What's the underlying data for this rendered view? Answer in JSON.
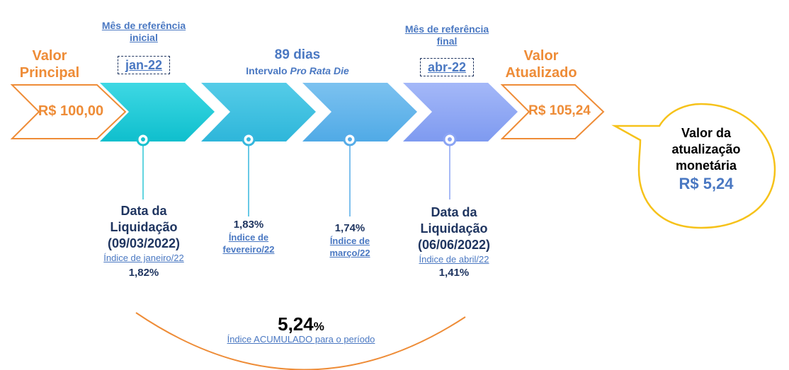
{
  "start": {
    "label_line1": "Valor",
    "label_line2": "Principal",
    "amount": "R$ 100,00"
  },
  "end": {
    "label_line1": "Valor",
    "label_line2": "Atualizado",
    "amount": "R$ 105,24"
  },
  "ref_initial": {
    "label_line1": "Mês de referência",
    "label_line2": "inicial",
    "month": "jan-22"
  },
  "ref_final": {
    "label_line1": "Mês de referência",
    "label_line2": "final",
    "month": "abr-22"
  },
  "interval": {
    "days": "89 dias",
    "label_prefix": "Intervalo ",
    "label_italic": "Pro Rata Die"
  },
  "points": [
    {
      "line1": "Data da",
      "line2": "Liquidação",
      "line3": "(09/03/2022)",
      "index_label": "Índice de janeiro/22",
      "value": "1,82%"
    },
    {
      "value": "1,83%",
      "index_label_line1": "Índice de",
      "index_label_line2": "fevereiro/22"
    },
    {
      "value": "1,74%",
      "index_label_line1": "Índice de",
      "index_label_line2": "março/22"
    },
    {
      "line1": "Data da",
      "line2": "Liquidação",
      "line3": "(06/06/2022)",
      "index_label": "Índice de abril/22",
      "value": "1,41%"
    }
  ],
  "accumulated": {
    "number": "5,24",
    "percent": "%",
    "label": "Índice ACUMULADO para o período"
  },
  "callout": {
    "line1": "Valor da",
    "line2": "atualização",
    "line3": "monetária",
    "value": "R$ 5,24"
  },
  "colors": {
    "orange": "#ee8c37",
    "navy": "#1f3560",
    "link_blue": "#4a78c2",
    "arrow_1": "#1bc8d6",
    "arrow_2": "#38bde0",
    "arrow_3": "#5eb2ea",
    "arrow_4": "#8aa4f4",
    "callout_border": "#f6c21a"
  }
}
